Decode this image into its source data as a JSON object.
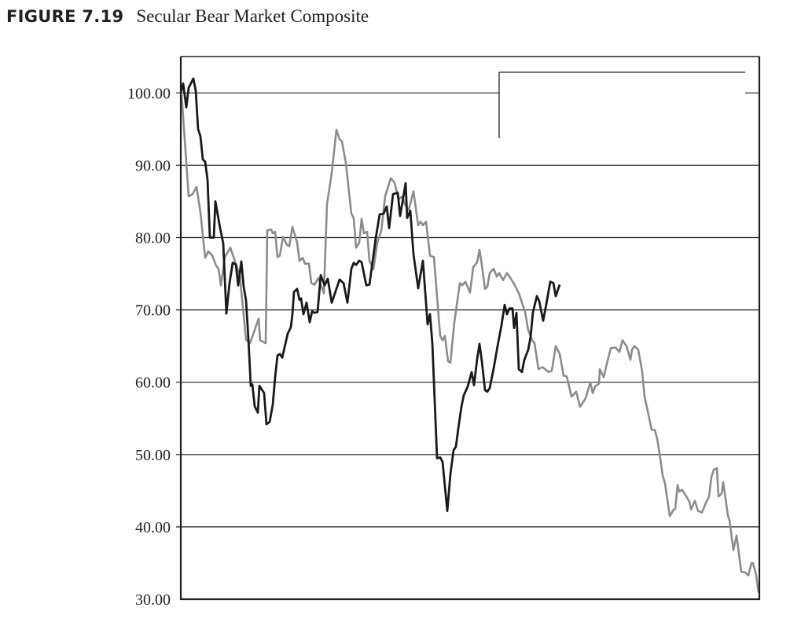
{
  "figure": {
    "number": "FIGURE 7.19",
    "title": "Secular Bear Market Composite"
  },
  "chart_data": {
    "type": "line",
    "title": "Secular Bear Market Composite",
    "xlabel": "",
    "ylabel": "",
    "xlim": [
      0,
      184
    ],
    "ylim": [
      30,
      105
    ],
    "yticks": [
      "30.00",
      "40.00",
      "50.00",
      "60.00",
      "70.00",
      "80.00",
      "90.00",
      "100.00"
    ],
    "grid": "horizontal",
    "legend": "top-right (empty box)",
    "colors": {
      "black_series": "#1a1a1a",
      "gray_series": "#8c8c8c",
      "grid": "#231f20"
    },
    "series": [
      {
        "color": "#8c8c8c",
        "points": [
          [
            0.25,
            99.8
          ],
          [
            2.5,
            85.7
          ],
          [
            3.75,
            86
          ],
          [
            5,
            87
          ],
          [
            6.25,
            83.5
          ],
          [
            7.75,
            77.2
          ],
          [
            8.75,
            78.1
          ],
          [
            10,
            77.5
          ],
          [
            11.25,
            76.1
          ],
          [
            12,
            75.7
          ],
          [
            12.75,
            73.4
          ],
          [
            14,
            77.3
          ],
          [
            15.75,
            78.6
          ],
          [
            17,
            77
          ],
          [
            18.75,
            74.8
          ],
          [
            20.75,
            65.9
          ],
          [
            22,
            65.4
          ],
          [
            23.25,
            66.9
          ],
          [
            24.75,
            68.8
          ],
          [
            25.25,
            65.8
          ],
          [
            27,
            65.4
          ],
          [
            27.5,
            81
          ],
          [
            28.75,
            81.1
          ],
          [
            29.25,
            80.6
          ],
          [
            30,
            80.8
          ],
          [
            30.75,
            77.3
          ],
          [
            31.5,
            77.5
          ],
          [
            32.5,
            80.1
          ],
          [
            33.75,
            79
          ],
          [
            34.5,
            78.8
          ],
          [
            35.5,
            81.5
          ],
          [
            37,
            79.3
          ],
          [
            37.75,
            76.8
          ],
          [
            38.75,
            77.2
          ],
          [
            39.5,
            76.4
          ],
          [
            40.75,
            76.4
          ],
          [
            41.5,
            73.7
          ],
          [
            42.5,
            73.5
          ],
          [
            43.75,
            74.4
          ],
          [
            45.5,
            72.3
          ],
          [
            46.5,
            84.6
          ],
          [
            48,
            88.9
          ],
          [
            49.5,
            94.9
          ],
          [
            50.5,
            93.6
          ],
          [
            51.25,
            93.3
          ],
          [
            52.5,
            90.3
          ],
          [
            54.25,
            83.3
          ],
          [
            55,
            82.7
          ],
          [
            55.75,
            78.6
          ],
          [
            56.75,
            79.3
          ],
          [
            57.5,
            82.6
          ],
          [
            58.25,
            80.6
          ],
          [
            59.25,
            80.8
          ],
          [
            60,
            76.8
          ],
          [
            61.25,
            75.6
          ],
          [
            62.5,
            79.3
          ],
          [
            63.75,
            80.9
          ],
          [
            65,
            85.7
          ],
          [
            66.75,
            88.2
          ],
          [
            68,
            87.6
          ],
          [
            69.25,
            85.3
          ],
          [
            70.5,
            85.7
          ],
          [
            71.25,
            84.6
          ],
          [
            72.5,
            83.8
          ],
          [
            74,
            86.4
          ],
          [
            75.5,
            81.7
          ],
          [
            76.25,
            82.2
          ],
          [
            77,
            81.7
          ],
          [
            78,
            82.2
          ],
          [
            79.25,
            77.5
          ],
          [
            80.5,
            77.3
          ],
          [
            82.5,
            66.4
          ],
          [
            83.25,
            65.8
          ],
          [
            84,
            66.4
          ],
          [
            85,
            62.9
          ],
          [
            85.75,
            62.7
          ],
          [
            87,
            68.3
          ],
          [
            88.75,
            73.7
          ],
          [
            89.5,
            73.4
          ],
          [
            90.5,
            73.9
          ],
          [
            92,
            72.4
          ],
          [
            93,
            75.9
          ],
          [
            94.25,
            76.6
          ],
          [
            95,
            78.3
          ],
          [
            95.75,
            76.2
          ],
          [
            96.75,
            72.9
          ],
          [
            97.5,
            73.2
          ],
          [
            98.25,
            75.1
          ],
          [
            99.5,
            75.7
          ],
          [
            100.5,
            74.6
          ],
          [
            101.25,
            75.1
          ],
          [
            102.5,
            74.1
          ],
          [
            103.75,
            75.1
          ],
          [
            105,
            74.3
          ],
          [
            106.25,
            73.4
          ],
          [
            107.5,
            72.3
          ],
          [
            108.75,
            70.7
          ],
          [
            109.5,
            69.7
          ],
          [
            110.5,
            67.2
          ],
          [
            111.75,
            65.8
          ],
          [
            112.5,
            65.4
          ],
          [
            113.75,
            61.8
          ],
          [
            115,
            62.1
          ],
          [
            117,
            61.4
          ],
          [
            118,
            61.6
          ],
          [
            119.25,
            65
          ],
          [
            120.5,
            63.9
          ],
          [
            121.75,
            60.9
          ],
          [
            122.75,
            60.8
          ],
          [
            124.25,
            58
          ],
          [
            125.75,
            58.7
          ],
          [
            127,
            56.6
          ],
          [
            128.75,
            57.8
          ],
          [
            130.25,
            60
          ],
          [
            131,
            58.5
          ],
          [
            131.75,
            59.4
          ],
          [
            133,
            59.8
          ],
          [
            133.25,
            61.8
          ],
          [
            134.5,
            60.7
          ],
          [
            135.5,
            62.6
          ],
          [
            136.75,
            64.7
          ],
          [
            138.25,
            64.8
          ],
          [
            139.5,
            64.2
          ],
          [
            140.5,
            65.8
          ],
          [
            141.75,
            65
          ],
          [
            143,
            63.1
          ],
          [
            143.5,
            64.5
          ],
          [
            144.25,
            65
          ],
          [
            145.5,
            64.5
          ],
          [
            146.75,
            61.4
          ],
          [
            147.5,
            58
          ],
          [
            148.75,
            55.5
          ],
          [
            149.75,
            53.4
          ],
          [
            150.75,
            53.4
          ],
          [
            151.5,
            52.2
          ],
          [
            152.5,
            49.5
          ],
          [
            153.25,
            47.1
          ],
          [
            154,
            46
          ],
          [
            155.5,
            41.5
          ],
          [
            156.75,
            42.4
          ],
          [
            157.25,
            42.5
          ],
          [
            158,
            45.8
          ],
          [
            158.5,
            44.9
          ],
          [
            159.5,
            45.1
          ],
          [
            160.5,
            44.4
          ],
          [
            161.75,
            43.5
          ],
          [
            162.25,
            42.4
          ],
          [
            163.5,
            43.6
          ],
          [
            164.5,
            42.2
          ],
          [
            165.75,
            42
          ],
          [
            167,
            43.3
          ],
          [
            168,
            44.2
          ],
          [
            168.75,
            46.9
          ],
          [
            169.5,
            47.9
          ],
          [
            170.5,
            48.1
          ],
          [
            171,
            44.2
          ],
          [
            172,
            44.6
          ],
          [
            172.5,
            46.2
          ],
          [
            174,
            41.6
          ],
          [
            174.5,
            40.9
          ],
          [
            175.75,
            36.8
          ],
          [
            176.75,
            38.8
          ],
          [
            178.25,
            33.8
          ],
          [
            179.5,
            33.7
          ],
          [
            180.5,
            33.3
          ],
          [
            181.5,
            35
          ],
          [
            182,
            35
          ],
          [
            183,
            33.3
          ],
          [
            183.75,
            30.9
          ]
        ]
      },
      {
        "color": "#1a1a1a",
        "points": [
          [
            0,
            100
          ],
          [
            0.75,
            101.3
          ],
          [
            1.75,
            98
          ],
          [
            2.5,
            100.7
          ],
          [
            4,
            102
          ],
          [
            4.75,
            100.3
          ],
          [
            5.5,
            95
          ],
          [
            6.25,
            94
          ],
          [
            7,
            90.8
          ],
          [
            7.75,
            90.5
          ],
          [
            8.5,
            88
          ],
          [
            9.25,
            80
          ],
          [
            10.5,
            80
          ],
          [
            11,
            85
          ],
          [
            12.5,
            81.3
          ],
          [
            13.5,
            79.2
          ],
          [
            14.5,
            69.5
          ],
          [
            15.5,
            73.7
          ],
          [
            16.5,
            76.5
          ],
          [
            17.5,
            76.3
          ],
          [
            18.25,
            73.4
          ],
          [
            19.25,
            76.7
          ],
          [
            20,
            73.2
          ],
          [
            20.75,
            71.3
          ],
          [
            21.5,
            66
          ],
          [
            22.25,
            59.5
          ],
          [
            22.75,
            59.7
          ],
          [
            23.5,
            56.7
          ],
          [
            24.5,
            55.8
          ],
          [
            25,
            59.5
          ],
          [
            26.5,
            58.5
          ],
          [
            27.25,
            54.2
          ],
          [
            28.25,
            54.5
          ],
          [
            29.25,
            56.9
          ],
          [
            30,
            60.7
          ],
          [
            30.75,
            63.7
          ],
          [
            31.5,
            63.9
          ],
          [
            32.25,
            63.4
          ],
          [
            33.25,
            65.3
          ],
          [
            34,
            66.7
          ],
          [
            35,
            67.6
          ],
          [
            35.5,
            69.4
          ],
          [
            36,
            72.5
          ],
          [
            37,
            72.9
          ],
          [
            37.75,
            71.4
          ],
          [
            38.25,
            71.6
          ],
          [
            39,
            69.4
          ],
          [
            40,
            71
          ],
          [
            41,
            68.3
          ],
          [
            41.75,
            69.8
          ],
          [
            42.5,
            69.6
          ],
          [
            43.5,
            69.7
          ],
          [
            44.5,
            74.8
          ],
          [
            45.75,
            73.4
          ],
          [
            46.75,
            74.3
          ],
          [
            48,
            71
          ],
          [
            50.5,
            74.2
          ],
          [
            51.75,
            73.7
          ],
          [
            53,
            71
          ],
          [
            54.25,
            75.7
          ],
          [
            55,
            76.5
          ],
          [
            55.75,
            76.2
          ],
          [
            56.75,
            76.8
          ],
          [
            57.5,
            76.6
          ],
          [
            59,
            73.4
          ],
          [
            60,
            73.5
          ],
          [
            62,
            79.9
          ],
          [
            63.25,
            83.2
          ],
          [
            64.5,
            83.3
          ],
          [
            65.5,
            84.3
          ],
          [
            66.25,
            81.3
          ],
          [
            67.5,
            86
          ],
          [
            69,
            86.2
          ],
          [
            69.75,
            83
          ],
          [
            71.5,
            87.5
          ],
          [
            72,
            82.7
          ],
          [
            73,
            83.7
          ],
          [
            74,
            77.7
          ],
          [
            75.5,
            73
          ],
          [
            77,
            76.8
          ],
          [
            78.5,
            68
          ],
          [
            79.25,
            69.4
          ],
          [
            80,
            65.4
          ],
          [
            81.5,
            49.5
          ],
          [
            82.5,
            49.6
          ],
          [
            83.25,
            49
          ],
          [
            84.75,
            42.2
          ],
          [
            85.75,
            47.3
          ],
          [
            86.75,
            50.6
          ],
          [
            87.5,
            51.1
          ],
          [
            88.25,
            53.6
          ],
          [
            89.25,
            56.6
          ],
          [
            90,
            58.2
          ],
          [
            91.25,
            59.4
          ],
          [
            92.5,
            61.4
          ],
          [
            93.25,
            59.6
          ],
          [
            94.25,
            63.2
          ],
          [
            95,
            65.3
          ],
          [
            95.75,
            62.9
          ],
          [
            96.75,
            58.9
          ],
          [
            97.5,
            58.7
          ],
          [
            98.25,
            59.2
          ],
          [
            99.5,
            61.9
          ],
          [
            100.75,
            65
          ],
          [
            102,
            67.9
          ],
          [
            103,
            70.7
          ],
          [
            103.75,
            69.4
          ],
          [
            104.5,
            70.2
          ],
          [
            105.5,
            70.2
          ],
          [
            106,
            67.5
          ],
          [
            106.75,
            69.6
          ],
          [
            107.5,
            61.8
          ],
          [
            108.5,
            61.4
          ],
          [
            109.25,
            63.1
          ],
          [
            110.5,
            64.5
          ],
          [
            111.25,
            66.3
          ],
          [
            112,
            69.7
          ],
          [
            113.25,
            71.9
          ],
          [
            114,
            71.2
          ],
          [
            115.25,
            68.5
          ],
          [
            116.25,
            70.8
          ],
          [
            117.5,
            73.9
          ],
          [
            118.5,
            73.7
          ],
          [
            119.25,
            71.9
          ],
          [
            120.5,
            73.5
          ]
        ]
      }
    ]
  }
}
